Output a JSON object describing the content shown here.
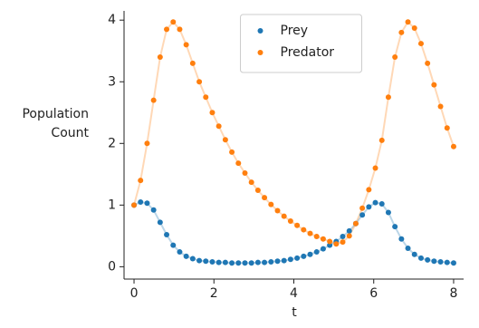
{
  "chart_data": {
    "type": "scatter",
    "xlabel": "t",
    "ylabel": "Population Count",
    "x": [
      0,
      0.163,
      0.327,
      0.49,
      0.653,
      0.816,
      0.98,
      1.143,
      1.306,
      1.469,
      1.633,
      1.796,
      1.959,
      2.122,
      2.286,
      2.449,
      2.612,
      2.776,
      2.939,
      3.102,
      3.265,
      3.429,
      3.592,
      3.755,
      3.918,
      4.082,
      4.245,
      4.408,
      4.571,
      4.735,
      4.898,
      5.061,
      5.224,
      5.388,
      5.551,
      5.714,
      5.878,
      6.041,
      6.204,
      6.367,
      6.531,
      6.694,
      6.857,
      7.02,
      7.184,
      7.347,
      7.51,
      7.673,
      7.837,
      8
    ],
    "series": [
      {
        "name": "Prey",
        "color": "#1f77b4",
        "values": [
          1.0,
          1.05,
          1.03,
          0.92,
          0.72,
          0.52,
          0.35,
          0.24,
          0.17,
          0.13,
          0.1,
          0.09,
          0.08,
          0.07,
          0.07,
          0.06,
          0.06,
          0.06,
          0.06,
          0.07,
          0.07,
          0.08,
          0.09,
          0.1,
          0.12,
          0.14,
          0.17,
          0.2,
          0.24,
          0.29,
          0.35,
          0.41,
          0.49,
          0.58,
          0.7,
          0.84,
          0.97,
          1.04,
          1.02,
          0.88,
          0.65,
          0.45,
          0.3,
          0.2,
          0.14,
          0.11,
          0.09,
          0.08,
          0.07,
          0.06
        ]
      },
      {
        "name": "Predator",
        "color": "#ff7f0e",
        "values": [
          1.0,
          1.4,
          2.0,
          2.7,
          3.4,
          3.85,
          3.97,
          3.85,
          3.6,
          3.3,
          3.0,
          2.75,
          2.5,
          2.28,
          2.06,
          1.86,
          1.68,
          1.52,
          1.37,
          1.24,
          1.12,
          1.01,
          0.91,
          0.82,
          0.74,
          0.67,
          0.6,
          0.54,
          0.49,
          0.45,
          0.41,
          0.37,
          0.4,
          0.5,
          0.7,
          0.95,
          1.25,
          1.6,
          2.05,
          2.75,
          3.4,
          3.8,
          3.97,
          3.87,
          3.62,
          3.3,
          2.95,
          2.6,
          2.25,
          1.95
        ]
      }
    ],
    "connect": true,
    "xlim": [
      -0.25,
      8.25
    ],
    "xticks": [
      0,
      2,
      4,
      6,
      8
    ],
    "ylim": [
      -0.2,
      4.15
    ],
    "yticks": [
      0,
      1,
      2,
      3,
      4
    ],
    "legend": "upper center"
  }
}
